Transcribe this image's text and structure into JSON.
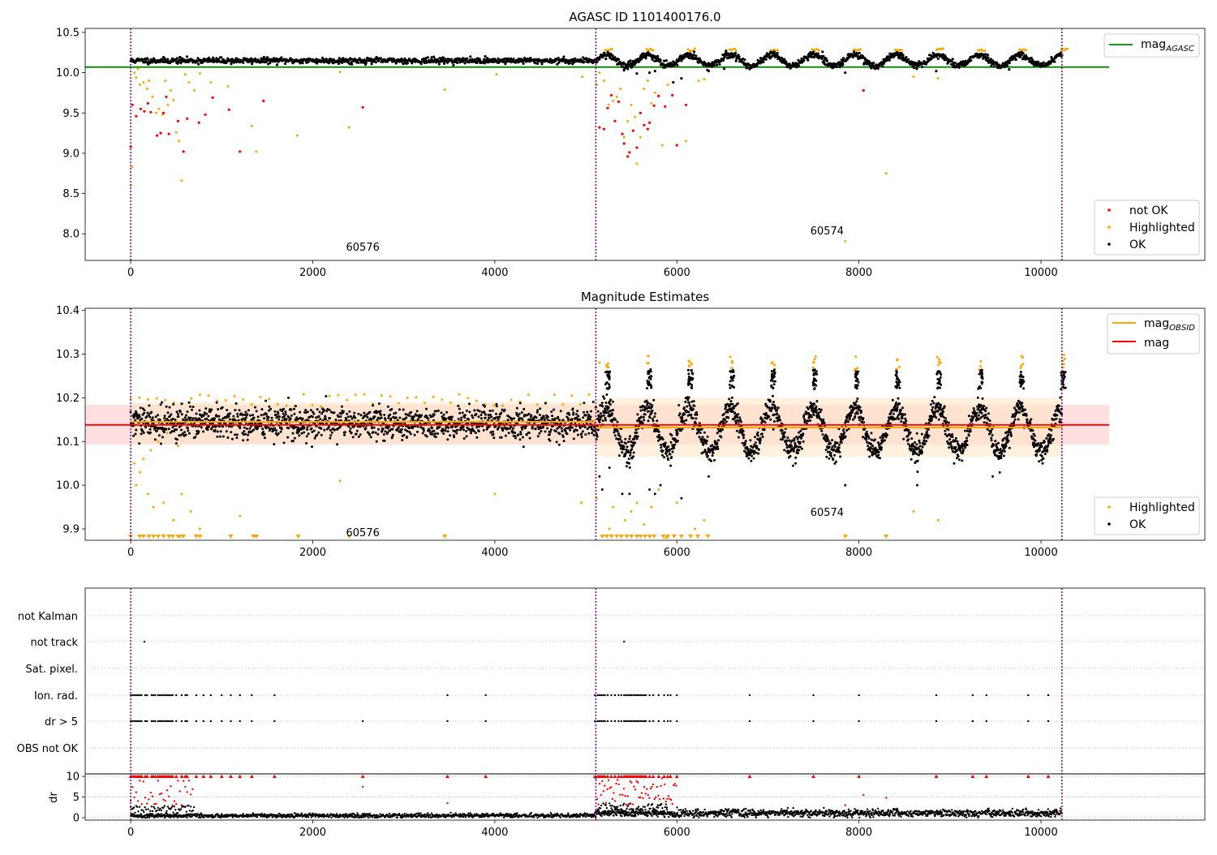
{
  "colors": {
    "ok": "#000000",
    "highlighted": "#ffa500",
    "not_ok": "#ff0000",
    "agasc_line": "#008000",
    "obsid_line": "#ffa500",
    "mag_line": "#ff0000",
    "obs_boundary": "#800080",
    "mag_band": "#ffdcdc",
    "obsid_band": "#ffe6c3"
  },
  "chart_data": [
    {
      "type": "scatter",
      "title": "AGASC ID 1101400176.0",
      "xlim": [
        -500,
        11800
      ],
      "ylim": [
        7.67,
        10.55
      ],
      "xticks": [
        0,
        2000,
        4000,
        6000,
        8000,
        10000
      ],
      "yticks": [
        8.0,
        8.5,
        9.0,
        9.5,
        10.0,
        10.5
      ],
      "ytick_labels": [
        "8.0",
        "8.5",
        "9.0",
        "9.5",
        "10.0",
        "10.5"
      ],
      "hlines": [
        {
          "name": "mag_AGASC",
          "y": 10.07,
          "x": [
            -500,
            10750
          ]
        }
      ],
      "obs_boundaries": [
        0,
        5110,
        10230
      ],
      "obs_labels": [
        {
          "text": "60576",
          "x": 2550,
          "y": 7.79
        },
        {
          "text": "60574",
          "x": 7650,
          "y": 7.99
        }
      ],
      "series": [
        {
          "name": "not OK",
          "color": "#ff0000",
          "points": [
            [
              0,
              9.08
            ],
            [
              20,
              9.6
            ],
            [
              60,
              9.46
            ],
            [
              110,
              9.55
            ],
            [
              150,
              9.52
            ],
            [
              190,
              9.62
            ],
            [
              220,
              9.51
            ],
            [
              290,
              9.22
            ],
            [
              330,
              9.25
            ],
            [
              360,
              9.5
            ],
            [
              390,
              9.7
            ],
            [
              420,
              9.24
            ],
            [
              520,
              9.4
            ],
            [
              580,
              9.02
            ],
            [
              620,
              9.43
            ],
            [
              750,
              9.38
            ],
            [
              820,
              9.48
            ],
            [
              900,
              9.69
            ],
            [
              1080,
              9.54
            ],
            [
              1200,
              9.02
            ],
            [
              1460,
              9.65
            ],
            [
              2550,
              9.57
            ],
            [
              5150,
              9.32
            ],
            [
              5200,
              9.3
            ],
            [
              5240,
              9.56
            ],
            [
              5280,
              9.72
            ],
            [
              5320,
              9.4
            ],
            [
              5360,
              9.64
            ],
            [
              5400,
              9.24
            ],
            [
              5420,
              9.12
            ],
            [
              5460,
              8.96
            ],
            [
              5480,
              9.01
            ],
            [
              5520,
              9.28
            ],
            [
              5560,
              9.07
            ],
            [
              5600,
              9.5
            ],
            [
              5640,
              9.35
            ],
            [
              5680,
              9.3
            ],
            [
              5700,
              9.38
            ],
            [
              5750,
              9.59
            ],
            [
              5800,
              9.71
            ],
            [
              5870,
              9.58
            ],
            [
              5950,
              9.72
            ],
            [
              6000,
              9.1
            ],
            [
              6100,
              9.6
            ],
            [
              8050,
              9.78
            ]
          ]
        },
        {
          "name": "Highlighted",
          "color": "#ffa500",
          "points": [
            [
              0,
              8.6
            ],
            [
              15,
              8.83
            ],
            [
              25,
              10.15
            ],
            [
              40,
              10.0
            ],
            [
              60,
              9.94
            ],
            [
              80,
              10.05
            ],
            [
              100,
              9.85
            ],
            [
              140,
              9.88
            ],
            [
              180,
              9.8
            ],
            [
              200,
              9.9
            ],
            [
              240,
              9.7
            ],
            [
              280,
              9.5
            ],
            [
              310,
              9.55
            ],
            [
              350,
              9.48
            ],
            [
              380,
              9.9
            ],
            [
              410,
              9.6
            ],
            [
              440,
              9.78
            ],
            [
              470,
              9.66
            ],
            [
              500,
              9.26
            ],
            [
              530,
              9.15
            ],
            [
              560,
              8.66
            ],
            [
              600,
              9.98
            ],
            [
              640,
              9.88
            ],
            [
              700,
              9.78
            ],
            [
              760,
              9.99
            ],
            [
              880,
              9.88
            ],
            [
              1070,
              9.83
            ],
            [
              1330,
              9.34
            ],
            [
              1380,
              9.02
            ],
            [
              1830,
              9.22
            ],
            [
              2400,
              9.32
            ],
            [
              2300,
              10.01
            ],
            [
              3450,
              9.79
            ],
            [
              4020,
              9.98
            ],
            [
              4960,
              9.95
            ],
            [
              5120,
              9.85
            ],
            [
              5150,
              10.0
            ],
            [
              5200,
              9.9
            ],
            [
              5250,
              9.6
            ],
            [
              5300,
              9.65
            ],
            [
              5340,
              9.7
            ],
            [
              5380,
              9.8
            ],
            [
              5420,
              9.2
            ],
            [
              5460,
              9.4
            ],
            [
              5500,
              9.6
            ],
            [
              5540,
              9.45
            ],
            [
              5560,
              8.87
            ],
            [
              5600,
              9.2
            ],
            [
              5640,
              9.8
            ],
            [
              5680,
              9.9
            ],
            [
              5720,
              9.62
            ],
            [
              5760,
              9.75
            ],
            [
              5840,
              9.1
            ],
            [
              5900,
              9.85
            ],
            [
              6100,
              9.15
            ],
            [
              6240,
              9.9
            ],
            [
              6300,
              9.92
            ],
            [
              7850,
              7.91
            ],
            [
              8300,
              8.75
            ],
            [
              8600,
              9.95
            ],
            [
              8870,
              9.93
            ]
          ]
        },
        {
          "name": "OK",
          "color": "#000000",
          "generator": "agasc_ok"
        }
      ],
      "legends": [
        {
          "position": "upper right",
          "entries": [
            "mag_AGASC"
          ]
        },
        {
          "position": "lower right",
          "entries": [
            "not OK",
            "Highlighted",
            "OK"
          ]
        }
      ]
    },
    {
      "type": "scatter",
      "title": "Magnitude Estimates",
      "xlim": [
        -500,
        11800
      ],
      "ylim": [
        9.874,
        10.405
      ],
      "xticks": [
        0,
        2000,
        4000,
        6000,
        8000,
        10000
      ],
      "yticks": [
        9.9,
        10.0,
        10.1,
        10.2,
        10.3,
        10.4
      ],
      "ytick_labels": [
        "9.9",
        "10.0",
        "10.1",
        "10.2",
        "10.3",
        "10.4"
      ],
      "obsid_segments": [
        {
          "x": [
            0,
            5110
          ],
          "mag": 10.145,
          "band": [
            10.095,
            10.19
          ]
        },
        {
          "x": [
            5110,
            10230
          ],
          "mag": 10.132,
          "band": [
            10.065,
            10.2
          ]
        }
      ],
      "mag": {
        "value": 10.138,
        "band": [
          10.093,
          10.184
        ],
        "x": [
          -500,
          10750
        ]
      },
      "obs_boundaries": [
        0,
        5110,
        10230
      ],
      "obs_labels": [
        {
          "text": "60576",
          "x": 2550,
          "y": 9.883
        },
        {
          "text": "60574",
          "x": 7650,
          "y": 9.93
        }
      ],
      "clipped_marker_x": [
        0,
        100,
        140,
        200,
        250,
        300,
        360,
        420,
        460,
        520,
        540,
        580,
        720,
        760,
        1100,
        1350,
        1380,
        1840,
        2400,
        3450,
        5180,
        5230,
        5280,
        5340,
        5390,
        5450,
        5500,
        5560,
        5600,
        5650,
        5700,
        5750,
        5850,
        5900,
        5970,
        6050,
        6150,
        6230,
        6340,
        7850,
        8300
      ],
      "series": [
        {
          "name": "Highlighted",
          "color": "#ffa500",
          "generator": "mag_highlighted"
        },
        {
          "name": "OK",
          "color": "#000000",
          "generator": "mag_ok"
        }
      ],
      "legends": [
        {
          "position": "upper right",
          "entries": [
            "mag_OBSID",
            "mag"
          ]
        },
        {
          "position": "lower right",
          "entries": [
            "Highlighted",
            "OK"
          ]
        }
      ]
    },
    {
      "type": "scatter",
      "title": "",
      "xlim": [
        -500,
        11800
      ],
      "xticks": [
        0,
        2000,
        4000,
        6000,
        8000,
        10000
      ],
      "flag_rows": [
        "not Kalman",
        "not track",
        "Sat. pixel.",
        "Ion. rad.",
        "dr > 5",
        "OBS not OK"
      ],
      "obs_boundaries": [
        0,
        5110,
        10230
      ],
      "flag_points": {
        "not track": [
          150,
          5420
        ],
        "Ion. rad.": [
          0,
          20,
          40,
          60,
          80,
          100,
          120,
          160,
          180,
          230,
          250,
          270,
          300,
          320,
          340,
          360,
          380,
          400,
          420,
          440,
          460,
          500,
          560,
          600,
          620,
          720,
          800,
          880,
          1000,
          1100,
          1200,
          1330,
          1580,
          3480,
          3900,
          5100,
          5130,
          5150,
          5170,
          5190,
          5210,
          5240,
          5280,
          5320,
          5360,
          5390,
          5420,
          5440,
          5460,
          5480,
          5500,
          5520,
          5540,
          5560,
          5580,
          5600,
          5620,
          5640,
          5660,
          5700,
          5740,
          5800,
          5860,
          5900,
          5930,
          6000,
          6800,
          7500,
          8000,
          8850,
          9250,
          9400,
          9860,
          10080
        ],
        "dr > 5": [
          0,
          20,
          40,
          60,
          80,
          100,
          120,
          160,
          180,
          230,
          250,
          270,
          300,
          320,
          340,
          360,
          380,
          400,
          420,
          440,
          460,
          500,
          560,
          600,
          620,
          720,
          800,
          880,
          1000,
          1100,
          1200,
          1330,
          1580,
          2550,
          3480,
          3900,
          5100,
          5130,
          5150,
          5170,
          5190,
          5210,
          5240,
          5280,
          5320,
          5360,
          5390,
          5420,
          5440,
          5460,
          5480,
          5500,
          5520,
          5540,
          5560,
          5580,
          5600,
          5620,
          5640,
          5660,
          5700,
          5740,
          5800,
          5860,
          5900,
          5930,
          6000,
          6800,
          7500,
          8000,
          8850,
          9250,
          9400,
          9860,
          10080
        ]
      },
      "dr_panel": {
        "ylabel": "dr",
        "ylim": [
          -0.6,
          10.3
        ],
        "yticks": [
          0,
          5,
          10
        ],
        "ytick_labels": [
          "0",
          "5",
          "10"
        ],
        "clip_value": 10
      }
    }
  ]
}
